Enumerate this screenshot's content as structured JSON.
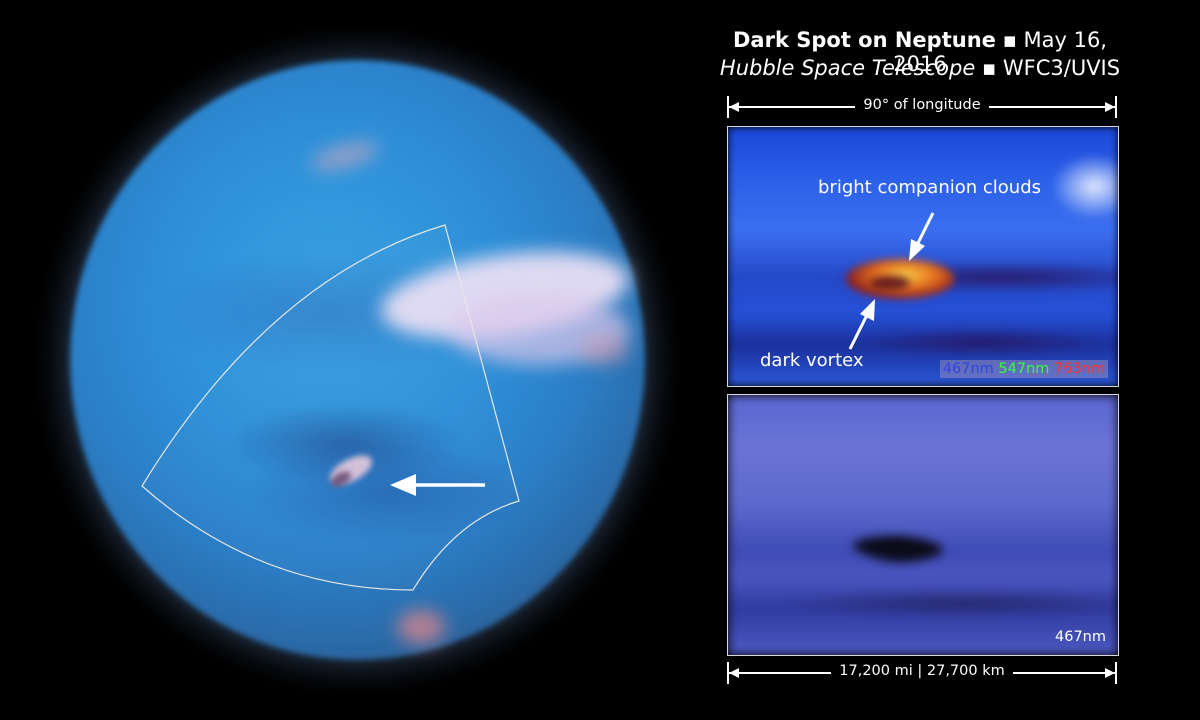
{
  "title": {
    "line1_bold": "Dark Spot on Neptune",
    "separator": "▪",
    "line1_date": "May 16, 2016",
    "line2_italic": "Hubble Space Telescope",
    "line2_instrument": "WFC3/UVIS"
  },
  "scale_top": {
    "label": "90° of longitude"
  },
  "scale_bottom": {
    "label": "17,200 mi | 27,700 km"
  },
  "panel_top": {
    "annotation_bright": "bright companion clouds",
    "annotation_dark": "dark vortex",
    "wavelengths": [
      {
        "label": "467nm",
        "color": "#2d45e0"
      },
      {
        "label": "547nm",
        "color": "#35ff35"
      },
      {
        "label": "763nm",
        "color": "#ff3030"
      }
    ]
  },
  "panel_bottom": {
    "wavelength": "467nm"
  }
}
